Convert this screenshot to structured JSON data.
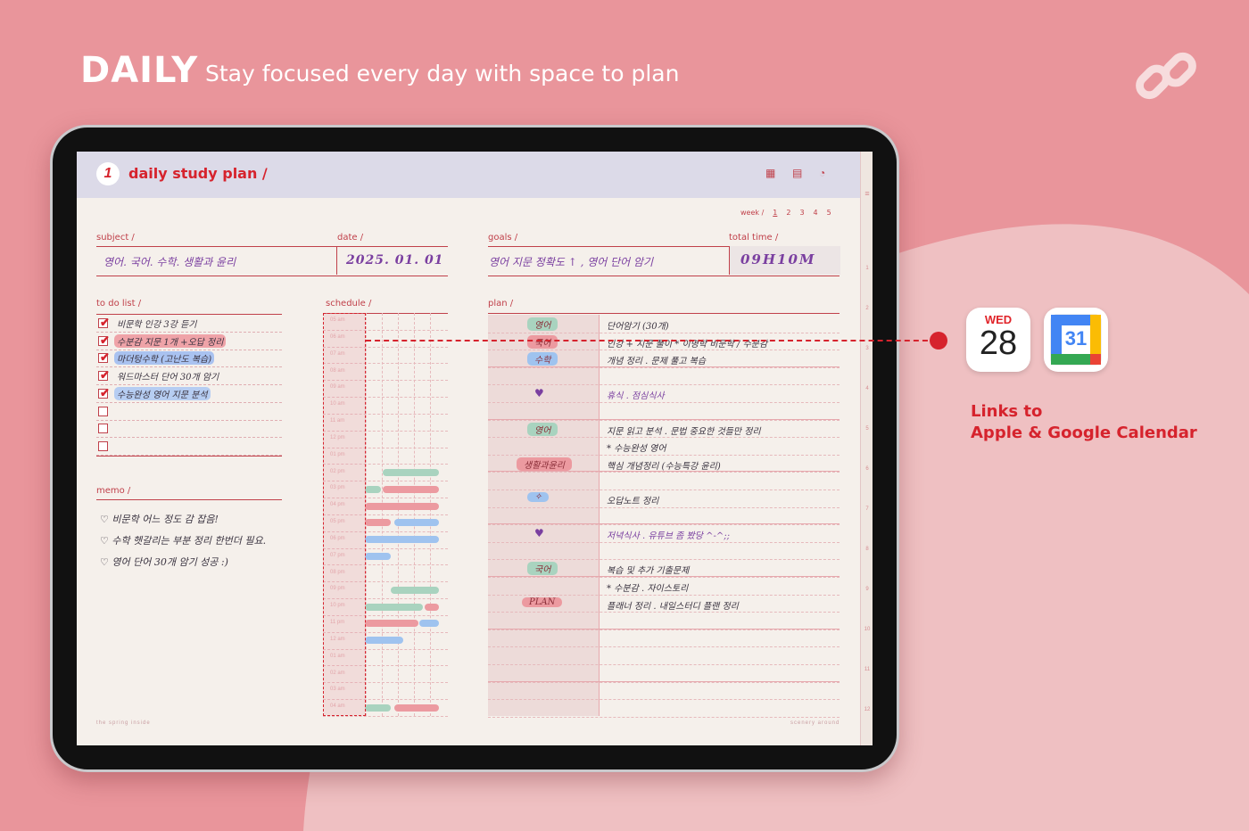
{
  "hero": {
    "title": "DAILY",
    "subtitle": "Stay focused every day with space to plan"
  },
  "header": {
    "page_number": "1",
    "title": "daily study plan /",
    "icons": [
      "grid-icon",
      "list-icon",
      "sticker-icon"
    ]
  },
  "week": {
    "label": "week /",
    "days": [
      "1",
      "2",
      "3",
      "4",
      "5"
    ],
    "selected": "1"
  },
  "side_tabs": [
    "1",
    "2",
    "3",
    "4",
    "5",
    "6",
    "7",
    "8",
    "9",
    "10",
    "11",
    "12"
  ],
  "fields": {
    "subject": {
      "label": "subject /",
      "value": "영어. 국어. 수학. 생활과 윤리"
    },
    "date": {
      "label": "date /",
      "value": "2025. 01. 01"
    },
    "goals": {
      "label": "goals /",
      "value": "영어 지문 정확도 ↑ , 영어 단어 암기"
    },
    "total_time": {
      "label": "total time /",
      "value": "09H10M"
    }
  },
  "todo": {
    "label": "to do list /",
    "items": [
      {
        "text": "비문학 인강 3강 듣기",
        "done": true,
        "highlight": ""
      },
      {
        "text": "수분감 지문 1개 +오답 정리",
        "done": true,
        "highlight": "#efa3a8"
      },
      {
        "text": "마더텅수학 (고난도 복습)",
        "done": true,
        "highlight": "#a9c2f0"
      },
      {
        "text": "워드마스터 단어 30개 암기",
        "done": true,
        "highlight": ""
      },
      {
        "text": "수능완성 영어 지문 분석",
        "done": true,
        "highlight": "#b6cdf2"
      },
      {
        "text": "",
        "done": false,
        "highlight": ""
      },
      {
        "text": "",
        "done": false,
        "highlight": ""
      },
      {
        "text": "",
        "done": false,
        "highlight": ""
      }
    ]
  },
  "memo": {
    "label": "memo /",
    "lines": [
      "♡ 비문학 어느 정도 감 잡음!",
      "♡ 수학 헷갈리는 부분 정리 한번더 필요.",
      "♡ 영어 단어 30개 암기 성공 :)"
    ]
  },
  "schedule": {
    "label": "schedule /",
    "hours": [
      "05 am",
      "06 am",
      "07 am",
      "08 am",
      "09 am",
      "10 am",
      "11 am",
      "12 pm",
      "01 pm",
      "02 pm",
      "03 pm",
      "04 pm",
      "05 pm",
      "06 pm",
      "07 pm",
      "08 pm",
      "09 pm",
      "10 pm",
      "11 pm",
      "12 am",
      "01 am",
      "02 am",
      "03 am",
      "04 am"
    ],
    "blocks": [
      {
        "hour": 9,
        "start": 1.5,
        "end": 5.0,
        "color": "#a9d3bf"
      },
      {
        "hour": 10,
        "start": 0.4,
        "end": 1.4,
        "color": "#a9d3bf"
      },
      {
        "hour": 10,
        "start": 1.5,
        "end": 5.0,
        "color": "#ec9aa0"
      },
      {
        "hour": 11,
        "start": 0.4,
        "end": 5.0,
        "color": "#ec9aa0"
      },
      {
        "hour": 12,
        "start": 0.4,
        "end": 2.0,
        "color": "#ec9aa0"
      },
      {
        "hour": 12,
        "start": 2.2,
        "end": 5.0,
        "color": "#9fc3ef"
      },
      {
        "hour": 13,
        "start": 0.4,
        "end": 5.0,
        "color": "#9fc3ef"
      },
      {
        "hour": 14,
        "start": 0.4,
        "end": 2.0,
        "color": "#9fc3ef"
      },
      {
        "hour": 16,
        "start": 2.0,
        "end": 5.0,
        "color": "#a9d3bf"
      },
      {
        "hour": 17,
        "start": 0.4,
        "end": 4.0,
        "color": "#a9d3bf"
      },
      {
        "hour": 17,
        "start": 4.1,
        "end": 5.0,
        "color": "#ec9aa0"
      },
      {
        "hour": 18,
        "start": 0.4,
        "end": 3.7,
        "color": "#ec9aa0"
      },
      {
        "hour": 18,
        "start": 3.8,
        "end": 5.0,
        "color": "#9fc3ef"
      },
      {
        "hour": 19,
        "start": 0.4,
        "end": 2.8,
        "color": "#9fc3ef"
      },
      {
        "hour": 23,
        "start": 0.4,
        "end": 2.0,
        "color": "#a9d3bf"
      },
      {
        "hour": 23,
        "start": 2.2,
        "end": 5.0,
        "color": "#ec9aa0"
      }
    ]
  },
  "plan": {
    "label": "plan /",
    "rows": [
      {
        "tag": "영어",
        "tag_color": "#a9d3bf",
        "text": "단어암기 (30개)"
      },
      {
        "tag": "국어",
        "tag_color": "#ec9aa0",
        "text": "인강 + 지문 풀이   * 이명학 비문학 / 수분감"
      },
      {
        "tag": "수학",
        "tag_color": "#9fc3ef",
        "text": "개념 정리 . 문제 풀고 복습"
      },
      {
        "tag": "",
        "tag_color": "",
        "text": ""
      },
      {
        "tag": "♥",
        "tag_color": "",
        "text": "휴식 . 점심식사"
      },
      {
        "tag": "",
        "tag_color": "",
        "text": ""
      },
      {
        "tag": "영어",
        "tag_color": "#a9d3bf",
        "text": "지문 읽고 분석 . 문법 중요한 것들만 정리"
      },
      {
        "tag": "",
        "tag_color": "",
        "text": "* 수능완성 영어"
      },
      {
        "tag": "생활과윤리",
        "tag_color": "#ec9aa0",
        "text": "핵심 개념정리 (수능특강 윤리)"
      },
      {
        "tag": "",
        "tag_color": "",
        "text": ""
      },
      {
        "tag": "✧",
        "tag_color": "#9fc3ef",
        "text": "오답노트 정리"
      },
      {
        "tag": "",
        "tag_color": "",
        "text": ""
      },
      {
        "tag": "♥",
        "tag_color": "",
        "text": "저녁식사 . 유튜브 좀 봤당 ^-^;;"
      },
      {
        "tag": "",
        "tag_color": "",
        "text": ""
      },
      {
        "tag": "국어",
        "tag_color": "#a9d3bf",
        "text": "복습 및 추가 기출문제"
      },
      {
        "tag": "",
        "tag_color": "",
        "text": "* 수분감 . 자이스토리"
      },
      {
        "tag": "PLAN",
        "tag_color": "#ec9aa0",
        "text": "플래너 정리 . 내일스터디 플랜 정리"
      },
      {
        "tag": "",
        "tag_color": "",
        "text": ""
      },
      {
        "tag": "",
        "tag_color": "",
        "text": ""
      },
      {
        "tag": "",
        "tag_color": "",
        "text": ""
      },
      {
        "tag": "",
        "tag_color": "",
        "text": ""
      },
      {
        "tag": "",
        "tag_color": "",
        "text": ""
      },
      {
        "tag": "",
        "tag_color": "",
        "text": ""
      }
    ]
  },
  "footer": {
    "left": "the spring inside",
    "right": "scenery around"
  },
  "calendar": {
    "apple_day": "WED",
    "apple_date": "28",
    "google_number": "31",
    "caption_line1": "Links to",
    "caption_line2": "Apple & Google Calendar"
  },
  "colors": {
    "accent": "#d6232d",
    "background": "#e9959b",
    "paper": "#f5f0eb",
    "header_band": "#dcdae8"
  }
}
